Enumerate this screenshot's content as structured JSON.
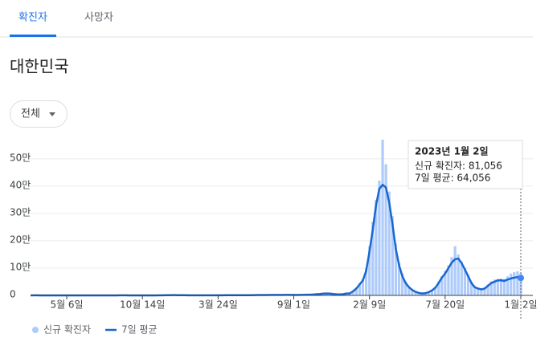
{
  "tabs": [
    "확진자",
    "사망자"
  ],
  "heading": "대한민국",
  "filter": "전체",
  "chart_data": {
    "type": "bar",
    "categories": [
      null,
      null,
      null,
      null,
      null,
      null,
      null,
      null,
      null,
      null,
      null,
      "5월 6일",
      null,
      null,
      null,
      null,
      null,
      null,
      null,
      null,
      null,
      null,
      null,
      null,
      null,
      null,
      null,
      null,
      null,
      null,
      null,
      null,
      null,
      null,
      "10월 14일",
      null,
      null,
      null,
      null,
      null,
      null,
      null,
      null,
      null,
      null,
      null,
      null,
      null,
      null,
      null,
      null,
      null,
      null,
      null,
      null,
      null,
      null,
      "3월 24일",
      null,
      null,
      null,
      null,
      null,
      null,
      null,
      null,
      null,
      null,
      null,
      null,
      null,
      null,
      null,
      null,
      null,
      null,
      null,
      null,
      null,
      null,
      "9월 1일",
      null,
      null,
      null,
      null,
      null,
      null,
      null,
      null,
      null,
      null,
      null,
      null,
      null,
      null,
      null,
      null,
      null,
      null,
      null,
      null,
      null,
      null,
      "2월 9일",
      null,
      null,
      null,
      null,
      null,
      null,
      null,
      null,
      null,
      null,
      null,
      null,
      null,
      null,
      null,
      null,
      null,
      null,
      null,
      null,
      null,
      null,
      "7월 20일",
      null,
      null,
      null,
      null,
      null,
      null,
      null,
      null,
      null,
      null,
      null,
      null,
      null,
      null,
      null,
      null,
      null,
      null,
      null,
      null,
      null,
      null,
      "1월 2일"
    ],
    "series": [
      {
        "name": "신규 확진자",
        "type": "bar",
        "color": "#aecbfa",
        "values": [
          20,
          300,
          500,
          150,
          100,
          80,
          50,
          40,
          30,
          20,
          15,
          20,
          30,
          40,
          45,
          50,
          50,
          45,
          45,
          50,
          55,
          50,
          45,
          40,
          40,
          45,
          60,
          200,
          300,
          250,
          150,
          100,
          90,
          80,
          80,
          90,
          100,
          120,
          150,
          250,
          400,
          600,
          800,
          1000,
          1000,
          900,
          700,
          600,
          500,
          400,
          400,
          420,
          400,
          420,
          400,
          430,
          440,
          450,
          480,
          600,
          650,
          600,
          550,
          550,
          550,
          580,
          600,
          700,
          1000,
          1300,
          1500,
          1500,
          1600,
          1700,
          1800,
          1700,
          1800,
          2000,
          2100,
          2000,
          2000,
          1800,
          1900,
          2200,
          2400,
          2600,
          3500,
          4500,
          5000,
          6500,
          7000,
          6500,
          5000,
          4000,
          3800,
          4500,
          7000,
          8000,
          17000,
          28000,
          45000,
          60000,
          100000,
          180000,
          270000,
          350000,
          420000,
          570000,
          480000,
          380000,
          290000,
          190000,
          120000,
          80000,
          50000,
          33000,
          22000,
          14000,
          10000,
          8000,
          9000,
          14000,
          20000,
          30000,
          50000,
          70000,
          90000,
          110000,
          140000,
          180000,
          150000,
          125000,
          100000,
          75000,
          50000,
          33000,
          28000,
          24000,
          28000,
          40000,
          52000,
          58000,
          60000,
          62000,
          60000,
          70000,
          80000,
          85000,
          88000,
          81056
        ]
      },
      {
        "name": "7일 평균",
        "type": "line",
        "color": "#1967d2",
        "values": [
          20,
          300,
          500,
          150,
          100,
          80,
          50,
          40,
          30,
          20,
          15,
          20,
          30,
          40,
          45,
          50,
          50,
          45,
          45,
          50,
          55,
          50,
          45,
          40,
          40,
          45,
          60,
          200,
          300,
          250,
          150,
          100,
          90,
          80,
          80,
          90,
          100,
          120,
          150,
          250,
          400,
          600,
          800,
          1000,
          1000,
          900,
          700,
          600,
          500,
          400,
          400,
          420,
          400,
          420,
          400,
          430,
          440,
          450,
          480,
          600,
          650,
          600,
          550,
          550,
          550,
          580,
          600,
          700,
          1000,
          1300,
          1500,
          1500,
          1600,
          1700,
          1800,
          1700,
          1800,
          2000,
          2100,
          2000,
          2000,
          1800,
          1900,
          2200,
          2400,
          2600,
          3500,
          4500,
          5000,
          6500,
          7000,
          6500,
          5000,
          4000,
          3800,
          4500,
          7000,
          7000,
          15000,
          25000,
          40000,
          55000,
          90000,
          160000,
          240000,
          330000,
          390000,
          405000,
          395000,
          340000,
          260000,
          170000,
          110000,
          70000,
          45000,
          30000,
          20000,
          13000,
          9000,
          7000,
          8000,
          12000,
          18000,
          28000,
          45000,
          65000,
          80000,
          100000,
          120000,
          132000,
          135000,
          118000,
          95000,
          70000,
          45000,
          30000,
          25000,
          22000,
          25000,
          35000,
          45000,
          50000,
          55000,
          55000,
          53000,
          58000,
          62000,
          65000,
          67000,
          64056
        ]
      }
    ],
    "ylim": [
      0,
      570000
    ],
    "yticks": [
      0,
      {
        "value": 100000,
        "label": "10만"
      },
      {
        "value": 200000,
        "label": "20만"
      },
      {
        "value": 300000,
        "label": "30만"
      },
      {
        "value": 400000,
        "label": "40만"
      },
      {
        "value": 500000,
        "label": "50만"
      }
    ],
    "grid": true,
    "legend": "bottom",
    "tooltip": {
      "title": "2023년 1월 2일",
      "rows": [
        "신규 확진자: 81,056",
        "7일 평균: 64,056"
      ]
    }
  }
}
